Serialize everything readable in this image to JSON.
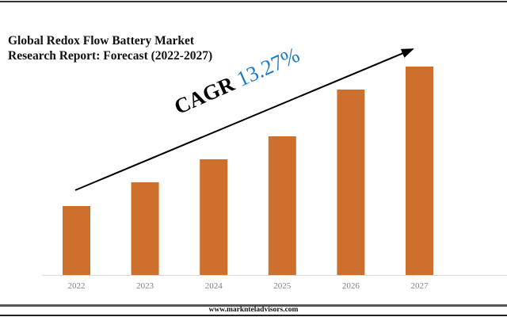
{
  "title": "Global Redox Flow Battery Market Research Report: Forecast (2022-2027)",
  "cagr": {
    "label": "CAGR",
    "value": "13.27%"
  },
  "footer": {
    "url": "www.marknteladvisors.com"
  },
  "colors": {
    "bar": "#cd6f2d",
    "cagr_value": "#1a7ac9"
  },
  "chart_data": {
    "type": "bar",
    "title": "Global Redox Flow Battery Market Research Report: Forecast (2022-2027)",
    "categories": [
      "2022",
      "2023",
      "2024",
      "2025",
      "2026",
      "2027"
    ],
    "values": [
      87,
      117,
      146,
      175,
      234,
      263
    ],
    "value_note": "relative heights; no y-axis printed",
    "ylim": [
      0,
      280
    ],
    "grid": false,
    "legend": "none",
    "annotation": "CAGR 13.27%"
  }
}
